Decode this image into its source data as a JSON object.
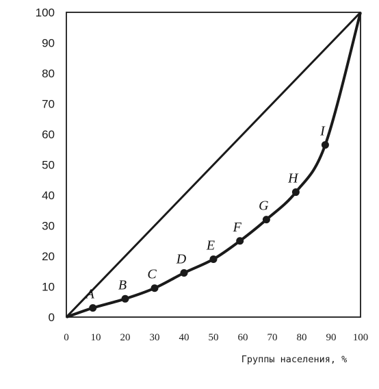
{
  "chart_data": {
    "type": "line",
    "xlabel": "Группы населения, %",
    "ylabel": "",
    "xlim": [
      0,
      100
    ],
    "ylim": [
      0,
      100
    ],
    "x_ticks": [
      "0",
      "10",
      "20",
      "30",
      "40",
      "50",
      "60",
      "70",
      "80",
      "90",
      "100"
    ],
    "y_ticks": [
      "0",
      "10",
      "20",
      "30",
      "40",
      "50",
      "60",
      "70",
      "80",
      "90",
      "100"
    ],
    "grid": false,
    "series": [
      {
        "values": [
          [
            0,
            0
          ],
          [
            100,
            100
          ]
        ]
      },
      {
        "values": [
          [
            0,
            0
          ],
          [
            9,
            3
          ],
          [
            20,
            6
          ],
          [
            30,
            9.5
          ],
          [
            40,
            14.5
          ],
          [
            50,
            19
          ],
          [
            59,
            25
          ],
          [
            68,
            32
          ],
          [
            78,
            41
          ],
          [
            88,
            56.5
          ],
          [
            100,
            100
          ]
        ]
      }
    ],
    "points": [
      {
        "label": "A",
        "x": 9,
        "y": 3
      },
      {
        "label": "B",
        "x": 20,
        "y": 6
      },
      {
        "label": "C",
        "x": 30,
        "y": 9.5
      },
      {
        "label": "D",
        "x": 40,
        "y": 14.5
      },
      {
        "label": "E",
        "x": 50,
        "y": 19
      },
      {
        "label": "F",
        "x": 59,
        "y": 25
      },
      {
        "label": "G",
        "x": 68,
        "y": 32
      },
      {
        "label": "H",
        "x": 78,
        "y": 41
      },
      {
        "label": "I",
        "x": 88,
        "y": 56.5
      }
    ],
    "colors": {
      "line": "#1a1a1a",
      "axis": "#1a1a1a",
      "text": "#1a1a1a"
    }
  }
}
